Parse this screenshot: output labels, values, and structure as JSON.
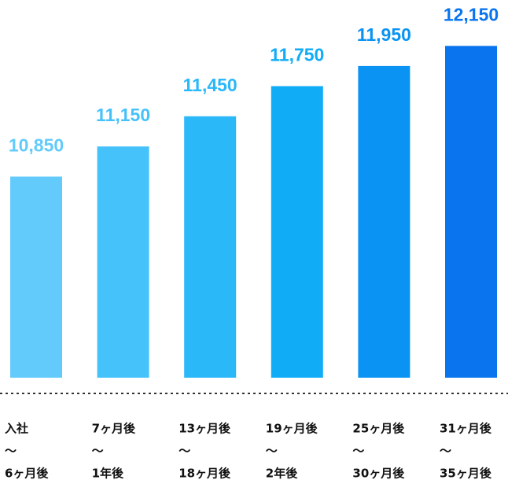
{
  "chart_data": {
    "type": "bar",
    "categories": [
      [
        "入社",
        "～",
        "6ヶ月後"
      ],
      [
        "7ヶ月後",
        "～",
        "1年後"
      ],
      [
        "13ヶ月後",
        "～",
        "18ヶ月後"
      ],
      [
        "19ヶ月後",
        "～",
        "2年後"
      ],
      [
        "25ヶ月後",
        "～",
        "30ヶ月後"
      ],
      [
        "31ヶ月後",
        "～",
        "35ヶ月後"
      ]
    ],
    "values": [
      10850,
      11150,
      11450,
      11750,
      11950,
      12150
    ],
    "value_labels": [
      "10,850",
      "11,150",
      "11,450",
      "11,750",
      "11,950",
      "12,150"
    ],
    "colors": [
      "#62cbfb",
      "#46c2fb",
      "#2ab8f9",
      "#10adf6",
      "#0a93f3",
      "#0a74ee"
    ],
    "ylim": [
      8850,
      12450
    ]
  }
}
